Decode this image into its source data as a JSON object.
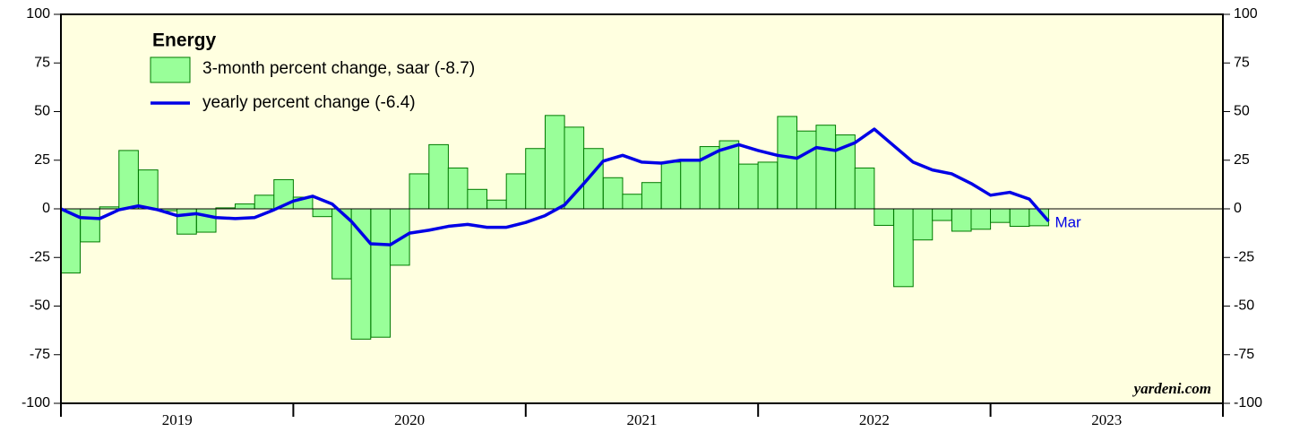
{
  "chart_data": {
    "type": "bar_line",
    "title": "Energy",
    "annotation": "Mar",
    "source": "yardeni.com",
    "categories": [
      "2019",
      "2020",
      "2021",
      "2022",
      "2023"
    ],
    "x": [
      2019,
      2019.083,
      2019.167,
      2019.25,
      2019.333,
      2019.417,
      2019.5,
      2019.583,
      2019.667,
      2019.75,
      2019.833,
      2019.917,
      2020,
      2020.083,
      2020.167,
      2020.25,
      2020.333,
      2020.417,
      2020.5,
      2020.583,
      2020.667,
      2020.75,
      2020.833,
      2020.917,
      2021,
      2021.083,
      2021.167,
      2021.25,
      2021.333,
      2021.417,
      2021.5,
      2021.583,
      2021.667,
      2021.75,
      2021.833,
      2021.917,
      2022,
      2022.083,
      2022.167,
      2022.25,
      2022.333,
      2022.417,
      2022.5,
      2022.583,
      2022.667,
      2022.75,
      2022.833,
      2022.917,
      2023,
      2023.083,
      2023.167,
      2023.25
    ],
    "series": [
      {
        "name": "3-month percent change, saar (-8.7)",
        "kind": "bar",
        "color": "#99ff99",
        "edgecolor": "#007a00",
        "values": [
          null,
          -33,
          -17,
          1,
          30,
          20,
          -1,
          -13,
          -12,
          0.5,
          2.5,
          7,
          15,
          6,
          -4,
          -36,
          -67,
          -66,
          -29,
          18,
          33,
          21,
          10,
          4.5,
          18,
          31,
          48,
          42,
          31,
          16,
          7.5,
          13.5,
          24,
          25,
          32,
          35,
          23,
          24,
          47.5,
          40,
          43,
          38,
          21,
          -8.5,
          -40,
          -16,
          -6,
          -11.5,
          -10.5,
          -7,
          -9,
          -8.7
        ]
      },
      {
        "name": "yearly percent change (-6.4)",
        "kind": "line",
        "color": "#0000e6",
        "values": [
          0,
          -4.5,
          -5,
          -0.5,
          1.5,
          -0.5,
          -3.5,
          -2.5,
          -4.5,
          -5,
          -4.5,
          -0.5,
          4,
          6.5,
          2.5,
          -6.5,
          -18,
          -18.5,
          -12.5,
          -11,
          -9,
          -8,
          -9.5,
          -9.5,
          -7,
          -3.5,
          2,
          13,
          24.5,
          27.5,
          24,
          23.5,
          25,
          25,
          30,
          33,
          30,
          27.5,
          26,
          31.5,
          30,
          34,
          41,
          32.5,
          24,
          20,
          18,
          13,
          7,
          8.5,
          5,
          -6.4
        ]
      }
    ],
    "xlim": [
      2019,
      2024
    ],
    "xticks": [
      2019,
      2020,
      2021,
      2022,
      2023,
      2024
    ],
    "ylim": [
      -100,
      100
    ],
    "yticks": [
      -100,
      -75,
      -50,
      -25,
      0,
      25,
      50,
      75,
      100
    ],
    "background": "#ffffe0"
  }
}
